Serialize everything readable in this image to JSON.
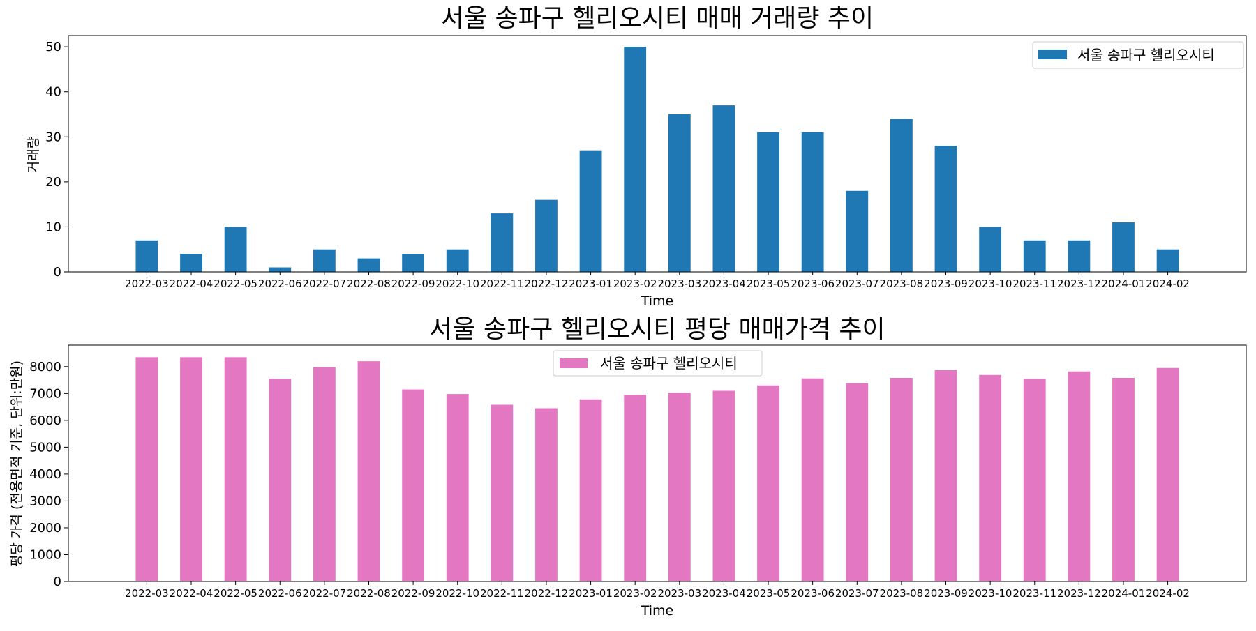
{
  "chart_data": [
    {
      "type": "bar",
      "title": "서울 송파구 헬리오시티 매매 거래량 추이",
      "xlabel": "Time",
      "ylabel": "거래량",
      "categories": [
        "2022-03",
        "2022-04",
        "2022-05",
        "2022-06",
        "2022-07",
        "2022-08",
        "2022-09",
        "2022-10",
        "2022-11",
        "2022-12",
        "2023-01",
        "2023-02",
        "2023-03",
        "2023-04",
        "2023-05",
        "2023-06",
        "2023-07",
        "2023-08",
        "2023-09",
        "2023-10",
        "2023-11",
        "2023-12",
        "2024-01",
        "2024-02"
      ],
      "series": [
        {
          "name": "서울 송파구 헬리오시티",
          "color": "#1f77b4",
          "values": [
            7,
            4,
            10,
            1,
            5,
            3,
            4,
            5,
            13,
            16,
            27,
            50,
            35,
            37,
            31,
            31,
            18,
            34,
            28,
            10,
            7,
            7,
            11,
            5
          ]
        }
      ],
      "ylim": [
        0,
        52.5
      ],
      "yticks": [
        0,
        10,
        20,
        30,
        40,
        50
      ],
      "legend": "top-right",
      "grid": false
    },
    {
      "type": "bar",
      "title": "서울 송파구 헬리오시티 평당 매매가격 추이",
      "xlabel": "Time",
      "ylabel": "평당 가격 (전용면적 기준, 단위:만원)",
      "categories": [
        "2022-03",
        "2022-04",
        "2022-05",
        "2022-06",
        "2022-07",
        "2022-08",
        "2022-09",
        "2022-10",
        "2022-11",
        "2022-12",
        "2023-01",
        "2023-02",
        "2023-03",
        "2023-04",
        "2023-05",
        "2023-06",
        "2023-07",
        "2023-08",
        "2023-09",
        "2023-10",
        "2023-11",
        "2023-12",
        "2024-01",
        "2024-02"
      ],
      "series": [
        {
          "name": "서울 송파구 헬리오시티",
          "color": "#e377c2",
          "values": [
            8350,
            8350,
            8350,
            7550,
            7980,
            8200,
            7150,
            6980,
            6580,
            6450,
            6780,
            6950,
            7030,
            7100,
            7300,
            7560,
            7380,
            7580,
            7870,
            7690,
            7540,
            7820,
            7580,
            7950
          ]
        }
      ],
      "ylim": [
        0,
        8800
      ],
      "yticks": [
        0,
        1000,
        2000,
        3000,
        4000,
        5000,
        6000,
        7000,
        8000
      ],
      "legend": "top-center",
      "grid": false
    }
  ]
}
